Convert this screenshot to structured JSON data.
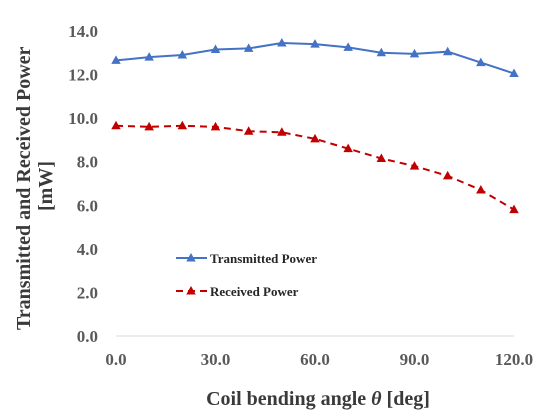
{
  "chart_data": {
    "type": "line",
    "title": "",
    "xlabel": "Coil bending angle θ [deg]",
    "xlabel_main": "Coil bending angle ",
    "xlabel_symbol": "θ",
    "xlabel_unit": " [deg]",
    "ylabel_line1": "Transmitted and Received Power",
    "ylabel_line2": "[mW]",
    "xlim": [
      0,
      120
    ],
    "ylim": [
      0,
      14
    ],
    "x_ticks": [
      "0.0",
      "30.0",
      "60.0",
      "90.0",
      "120.0"
    ],
    "y_ticks": [
      "0.0",
      "2.0",
      "4.0",
      "6.0",
      "8.0",
      "10.0",
      "12.0",
      "14.0"
    ],
    "grid": false,
    "legend_position": "lower-left",
    "x": [
      0,
      10,
      20,
      30,
      40,
      50,
      60,
      70,
      80,
      90,
      100,
      110,
      120
    ],
    "series": [
      {
        "name": "Transmitted Power",
        "color": "#4472c4",
        "line_style": "solid",
        "marker": "triangle",
        "values": [
          12.65,
          12.8,
          12.9,
          13.15,
          13.2,
          13.45,
          13.4,
          13.25,
          13.0,
          12.95,
          13.05,
          12.55,
          12.05
        ]
      },
      {
        "name": "Received Power",
        "color": "#c00000",
        "line_style": "dashed",
        "marker": "triangle",
        "values": [
          9.65,
          9.6,
          9.65,
          9.6,
          9.4,
          9.35,
          9.05,
          8.6,
          8.15,
          7.8,
          7.35,
          6.7,
          5.8
        ]
      }
    ]
  }
}
